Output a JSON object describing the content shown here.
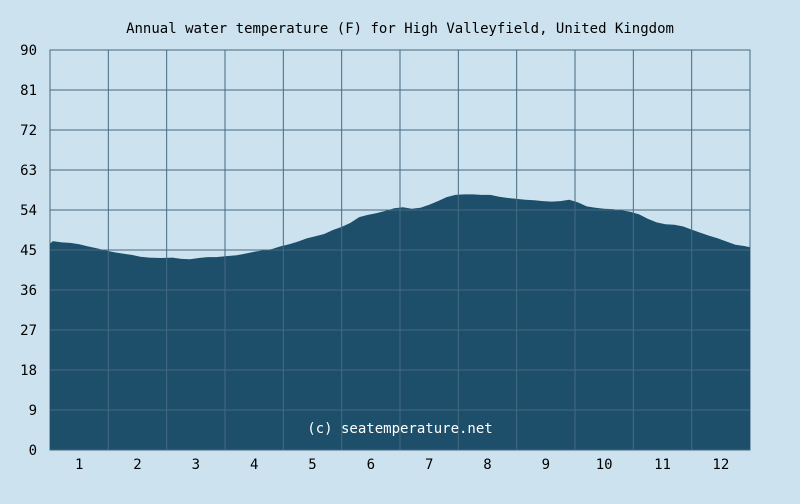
{
  "chart_data": {
    "type": "area",
    "title": "Annual water temperature (F) for High Valleyfield, United Kingdom",
    "watermark": "(c) seatemperature.net",
    "x_ticks": [
      "1",
      "2",
      "3",
      "4",
      "5",
      "6",
      "7",
      "8",
      "9",
      "10",
      "11",
      "12"
    ],
    "y_ticks": [
      "0",
      "9",
      "18",
      "27",
      "36",
      "45",
      "54",
      "63",
      "72",
      "81",
      "90"
    ],
    "xlim": [
      0.5,
      12.5
    ],
    "ylim": [
      0,
      90
    ],
    "grid": true,
    "x": [
      0.5,
      0.55,
      0.7,
      0.85,
      1.0,
      1.15,
      1.3,
      1.45,
      1.6,
      1.75,
      1.9,
      2.05,
      2.2,
      2.4,
      2.6,
      2.75,
      2.9,
      3.05,
      3.2,
      3.35,
      3.5,
      3.7,
      3.85,
      4.0,
      4.15,
      4.3,
      4.45,
      4.6,
      4.75,
      4.9,
      5.05,
      5.2,
      5.35,
      5.5,
      5.65,
      5.8,
      5.95,
      6.1,
      6.25,
      6.4,
      6.55,
      6.7,
      6.85,
      7.0,
      7.15,
      7.3,
      7.45,
      7.6,
      7.75,
      7.9,
      8.05,
      8.2,
      8.35,
      8.5,
      8.65,
      8.8,
      8.95,
      9.1,
      9.25,
      9.4,
      9.55,
      9.7,
      9.85,
      10.0,
      10.15,
      10.3,
      10.45,
      10.6,
      10.75,
      10.9,
      11.05,
      11.2,
      11.35,
      11.5,
      11.65,
      11.8,
      11.95,
      12.1,
      12.25,
      12.4,
      12.5
    ],
    "values": [
      46.4,
      47.0,
      46.7,
      46.6,
      46.3,
      45.8,
      45.4,
      44.9,
      44.5,
      44.2,
      43.9,
      43.5,
      43.3,
      43.2,
      43.3,
      43.0,
      42.9,
      43.2,
      43.4,
      43.4,
      43.6,
      43.8,
      44.2,
      44.6,
      44.9,
      45.2,
      45.8,
      46.3,
      46.9,
      47.6,
      48.1,
      48.6,
      49.5,
      50.2,
      51.1,
      52.4,
      52.9,
      53.3,
      53.8,
      54.4,
      54.6,
      54.3,
      54.5,
      55.2,
      56.0,
      56.9,
      57.4,
      57.5,
      57.5,
      57.4,
      57.4,
      57.0,
      56.7,
      56.5,
      56.3,
      56.2,
      56.0,
      55.9,
      56.0,
      56.3,
      55.7,
      54.8,
      54.5,
      54.3,
      54.2,
      53.9,
      53.6,
      53.0,
      52.0,
      51.2,
      50.8,
      50.7,
      50.3,
      49.6,
      48.9,
      48.2,
      47.6,
      46.9,
      46.2,
      45.9,
      45.6
    ],
    "colors": {
      "background": "#cce2ee",
      "area": "#1d4f6a",
      "grid": "#466a82",
      "text": "#000000",
      "watermark": "#ffffff"
    }
  }
}
